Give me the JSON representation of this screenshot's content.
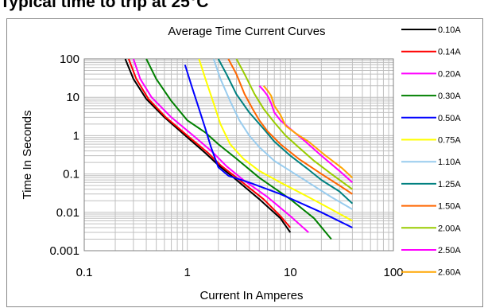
{
  "heading": "Typical time to trip at 25°C",
  "chart_data": {
    "type": "line",
    "title": "Average Time Current Curves",
    "xlabel": "Current In Amperes",
    "ylabel": "Time In Seconds",
    "xscale": "log",
    "yscale": "log",
    "xlim": [
      0.1,
      100
    ],
    "ylim": [
      0.001,
      100
    ],
    "x_ticks": [
      "0.1",
      "1",
      "10",
      "100"
    ],
    "y_ticks": [
      "100",
      "10",
      "1",
      "0.1",
      "0.01",
      "0.001"
    ],
    "grid": true,
    "legend_position": "right",
    "series": [
      {
        "name": "0.10A",
        "color": "#000000",
        "points": [
          [
            0.25,
            100
          ],
          [
            0.3,
            30
          ],
          [
            0.4,
            9
          ],
          [
            0.6,
            3
          ],
          [
            1,
            0.9
          ],
          [
            1.5,
            0.35
          ],
          [
            2,
            0.17
          ],
          [
            3,
            0.07
          ],
          [
            5,
            0.022
          ],
          [
            8,
            0.007
          ],
          [
            10,
            0.003
          ]
        ]
      },
      {
        "name": "0.14A",
        "color": "#ff0000",
        "points": [
          [
            0.27,
            100
          ],
          [
            0.32,
            30
          ],
          [
            0.42,
            9
          ],
          [
            0.62,
            3
          ],
          [
            1.05,
            0.9
          ],
          [
            1.6,
            0.35
          ],
          [
            2.1,
            0.17
          ],
          [
            3.2,
            0.07
          ],
          [
            5.5,
            0.022
          ],
          [
            8,
            0.008
          ],
          [
            10,
            0.004
          ]
        ]
      },
      {
        "name": "0.20A",
        "color": "#ff00ff",
        "points": [
          [
            0.3,
            100
          ],
          [
            0.35,
            30
          ],
          [
            0.45,
            10
          ],
          [
            0.7,
            3
          ],
          [
            1.2,
            0.9
          ],
          [
            1.8,
            0.35
          ],
          [
            2.4,
            0.16
          ],
          [
            3.5,
            0.07
          ],
          [
            6,
            0.025
          ],
          [
            10,
            0.008
          ],
          [
            15,
            0.003
          ]
        ]
      },
      {
        "name": "0.30A",
        "color": "#008000",
        "points": [
          [
            0.4,
            100
          ],
          [
            0.5,
            30
          ],
          [
            0.7,
            8
          ],
          [
            1,
            2.5
          ],
          [
            1.5,
            1.2
          ],
          [
            2,
            0.6
          ],
          [
            3,
            0.25
          ],
          [
            5,
            0.08
          ],
          [
            10,
            0.022
          ],
          [
            17,
            0.007
          ],
          [
            25,
            0.002
          ]
        ]
      },
      {
        "name": "0.50A",
        "color": "#0000ff",
        "points": [
          [
            0.95,
            70
          ],
          [
            1.1,
            20
          ],
          [
            1.3,
            5
          ],
          [
            1.5,
            1.5
          ],
          [
            1.7,
            0.5
          ],
          [
            2,
            0.15
          ],
          [
            2.5,
            0.09
          ],
          [
            4,
            0.06
          ],
          [
            8,
            0.03
          ],
          [
            20,
            0.01
          ],
          [
            40,
            0.004
          ]
        ]
      },
      {
        "name": "0.75A",
        "color": "#ffff00",
        "points": [
          [
            1.3,
            100
          ],
          [
            1.5,
            30
          ],
          [
            1.8,
            7
          ],
          [
            2.1,
            2
          ],
          [
            2.6,
            0.6
          ],
          [
            3.5,
            0.25
          ],
          [
            5,
            0.12
          ],
          [
            8,
            0.06
          ],
          [
            15,
            0.025
          ],
          [
            25,
            0.012
          ],
          [
            40,
            0.006
          ]
        ]
      },
      {
        "name": "1.10A",
        "color": "#99ccee",
        "points": [
          [
            1.8,
            100
          ],
          [
            2.1,
            30
          ],
          [
            2.6,
            8
          ],
          [
            3.2,
            2.5
          ],
          [
            4,
            1
          ],
          [
            5,
            0.5
          ],
          [
            7,
            0.22
          ],
          [
            10,
            0.12
          ],
          [
            15,
            0.06
          ],
          [
            25,
            0.025
          ],
          [
            40,
            0.012
          ]
        ]
      },
      {
        "name": "1.25A",
        "color": "#008080",
        "points": [
          [
            2,
            100
          ],
          [
            2.4,
            40
          ],
          [
            3,
            12
          ],
          [
            4,
            4
          ],
          [
            5.5,
            1.5
          ],
          [
            7,
            0.7
          ],
          [
            10,
            0.3
          ],
          [
            15,
            0.13
          ],
          [
            20,
            0.07
          ],
          [
            30,
            0.035
          ],
          [
            40,
            0.017
          ]
        ]
      },
      {
        "name": "1.50A",
        "color": "#ff6600",
        "points": [
          [
            2.5,
            100
          ],
          [
            3,
            40
          ],
          [
            3.6,
            12
          ],
          [
            4.3,
            5
          ],
          [
            5,
            2.5
          ],
          [
            6,
            1.3
          ],
          [
            8,
            0.6
          ],
          [
            12,
            0.25
          ],
          [
            20,
            0.1
          ],
          [
            30,
            0.05
          ],
          [
            40,
            0.03
          ]
        ]
      },
      {
        "name": "2.00A",
        "color": "#99cc00",
        "points": [
          [
            3,
            100
          ],
          [
            3.6,
            40
          ],
          [
            4.5,
            12
          ],
          [
            5.5,
            5
          ],
          [
            7,
            2.2
          ],
          [
            9,
            1
          ],
          [
            12,
            0.5
          ],
          [
            17,
            0.22
          ],
          [
            25,
            0.1
          ],
          [
            40,
            0.04
          ]
        ]
      },
      {
        "name": "2.50A",
        "color": "#ff00ff",
        "points": [
          [
            5,
            20
          ],
          [
            5.5,
            15
          ],
          [
            6,
            11
          ],
          [
            6.5,
            7
          ],
          [
            7,
            4
          ],
          [
            8,
            2.5
          ],
          [
            10,
            1.5
          ],
          [
            14,
            0.7
          ],
          [
            20,
            0.3
          ],
          [
            30,
            0.12
          ],
          [
            40,
            0.06
          ]
        ]
      },
      {
        "name": "2.60A",
        "color": "#ffa500",
        "points": [
          [
            5.5,
            20
          ],
          [
            6,
            15
          ],
          [
            6.5,
            11
          ],
          [
            7,
            6
          ],
          [
            8,
            3.5
          ],
          [
            9,
            1.8
          ],
          [
            11,
            1.2
          ],
          [
            15,
            0.7
          ],
          [
            22,
            0.3
          ],
          [
            32,
            0.14
          ],
          [
            40,
            0.08
          ]
        ]
      }
    ]
  }
}
